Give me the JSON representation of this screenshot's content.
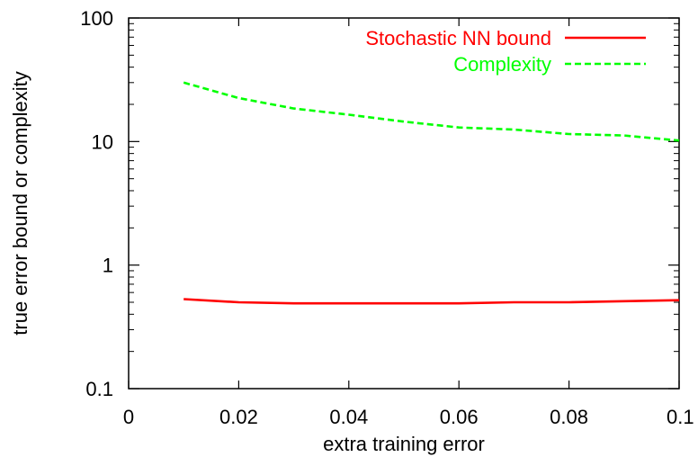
{
  "chart_data": {
    "type": "line",
    "title": "",
    "xlabel": "extra training error",
    "ylabel": "true error bound or complexity",
    "xlim": [
      0,
      0.1
    ],
    "ylim": [
      0.1,
      100
    ],
    "yscale": "log",
    "grid": false,
    "legend_position": "top-right",
    "x_ticks": [
      0,
      0.02,
      0.04,
      0.06,
      0.08,
      0.1
    ],
    "x_tick_labels": [
      "0",
      "0.02",
      "0.04",
      "0.06",
      "0.08",
      "0.1"
    ],
    "y_ticks": [
      0.1,
      1,
      10,
      100
    ],
    "y_tick_labels": [
      "0.1",
      "1",
      "10",
      "100"
    ],
    "series": [
      {
        "name": "Stochastic NN bound",
        "color": "#ff0000",
        "dash": "solid",
        "x": [
          0.01,
          0.02,
          0.03,
          0.04,
          0.05,
          0.06,
          0.07,
          0.08,
          0.09,
          0.1
        ],
        "y": [
          0.53,
          0.5,
          0.49,
          0.49,
          0.49,
          0.49,
          0.5,
          0.5,
          0.51,
          0.52
        ]
      },
      {
        "name": "Complexity",
        "color": "#00ff00",
        "dash": "dashed",
        "x": [
          0.01,
          0.02,
          0.03,
          0.04,
          0.05,
          0.06,
          0.07,
          0.08,
          0.09,
          0.1
        ],
        "y": [
          30,
          22.5,
          18.5,
          16.5,
          14.5,
          13,
          12.5,
          11.5,
          11.2,
          10.2
        ]
      }
    ]
  }
}
